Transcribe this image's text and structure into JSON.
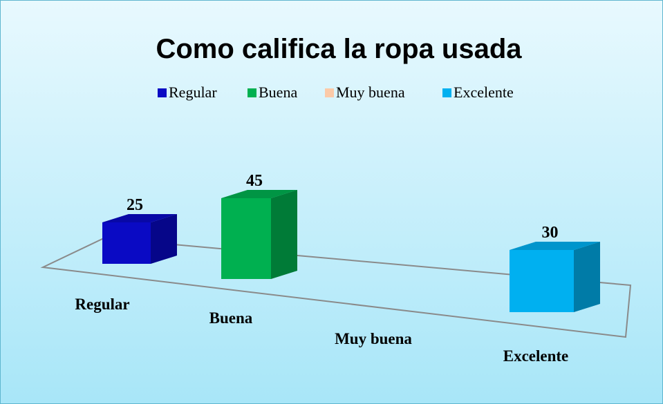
{
  "chart_data": {
    "type": "bar3d",
    "title": "Como califica la ropa usada",
    "categories": [
      "Regular",
      "Buena",
      "Muy buena",
      "Excelente"
    ],
    "values": [
      25,
      45,
      null,
      30
    ],
    "colors": [
      "#0a0ac4",
      "#00b050",
      "#fbcaa8",
      "#00b0f0"
    ]
  }
}
